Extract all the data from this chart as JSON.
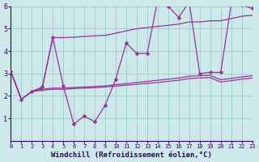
{
  "background_color": "#cce8e8",
  "grid_color": "#99cccc",
  "line_color": "#993399",
  "xlabel": "Windchill (Refroidissement éolien,°C)",
  "xlim_min": 0,
  "xlim_max": 23,
  "ylim_min": 0,
  "ylim_max": 6,
  "zigzag_x": [
    0,
    1,
    2,
    3,
    4,
    5,
    6,
    7,
    8,
    9,
    10,
    11,
    12,
    13,
    14,
    15,
    16,
    17,
    18,
    19,
    20,
    21,
    22,
    23
  ],
  "zigzag_y": [
    3.1,
    1.85,
    2.2,
    2.4,
    4.6,
    2.45,
    0.75,
    1.1,
    0.85,
    1.6,
    2.75,
    4.35,
    3.9,
    3.9,
    6.3,
    6.0,
    5.5,
    6.2,
    3.0,
    3.05,
    3.05,
    6.1,
    6.05,
    5.9
  ],
  "upper_x": [
    0,
    1,
    2,
    3,
    4,
    5,
    6,
    7,
    8,
    9,
    10,
    11,
    12,
    13,
    14,
    15,
    16,
    17,
    18,
    19,
    20,
    21,
    22,
    23
  ],
  "upper_y": [
    3.1,
    1.85,
    2.2,
    2.35,
    4.6,
    4.6,
    4.62,
    4.65,
    4.68,
    4.7,
    4.8,
    4.9,
    5.0,
    5.05,
    5.1,
    5.15,
    5.2,
    5.3,
    5.3,
    5.35,
    5.35,
    5.45,
    5.55,
    5.6
  ],
  "mid1_x": [
    0,
    1,
    2,
    3,
    4,
    5,
    6,
    7,
    8,
    9,
    10,
    11,
    12,
    13,
    14,
    15,
    16,
    17,
    18,
    19,
    20,
    21,
    22,
    23
  ],
  "mid1_y": [
    3.1,
    1.85,
    2.2,
    2.3,
    2.35,
    2.35,
    2.38,
    2.4,
    2.42,
    2.45,
    2.5,
    2.55,
    2.6,
    2.65,
    2.7,
    2.75,
    2.8,
    2.88,
    2.9,
    2.92,
    2.72,
    2.78,
    2.85,
    2.9
  ],
  "mid2_x": [
    0,
    1,
    2,
    3,
    4,
    5,
    6,
    7,
    8,
    9,
    10,
    11,
    12,
    13,
    14,
    15,
    16,
    17,
    18,
    19,
    20,
    21,
    22,
    23
  ],
  "mid2_y": [
    3.1,
    1.85,
    2.2,
    2.25,
    2.3,
    2.3,
    2.33,
    2.35,
    2.37,
    2.4,
    2.44,
    2.48,
    2.52,
    2.56,
    2.6,
    2.65,
    2.7,
    2.78,
    2.8,
    2.82,
    2.62,
    2.68,
    2.75,
    2.8
  ],
  "xlabel_fontsize": 6.5,
  "xlabel_color": "#330066",
  "tick_fontsize": 5,
  "spine_color": "#330066"
}
